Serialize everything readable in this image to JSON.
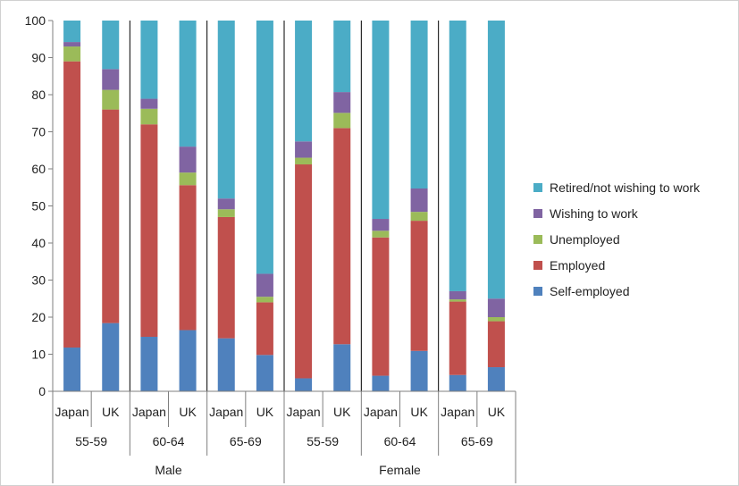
{
  "chart_data": {
    "type": "bar",
    "stacked": true,
    "ylim": [
      0,
      100
    ],
    "yticks": [
      0,
      10,
      20,
      30,
      40,
      50,
      60,
      70,
      80,
      90,
      100
    ],
    "grid": false,
    "legend_position": "right",
    "gender_groups": [
      "Male",
      "Female"
    ],
    "age_groups": [
      "55-59",
      "60-64",
      "65-69"
    ],
    "countries": [
      "Japan",
      "UK"
    ],
    "categories": [
      "Japan 55-59 Male",
      "UK 55-59 Male",
      "Japan 60-64 Male",
      "UK 60-64 Male",
      "Japan 65-69 Male",
      "UK 65-69 Male",
      "Japan 55-59 Female",
      "UK 55-59 Female",
      "Japan 60-64 Female",
      "UK 60-64 Female",
      "Japan 65-69 Female",
      "UK 65-69 Female"
    ],
    "series": [
      {
        "name": "Self-employed",
        "color": "#4f81bd",
        "values": [
          11.8,
          18.4,
          14.7,
          16.5,
          14.3,
          9.8,
          3.5,
          12.7,
          4.2,
          10.9,
          4.4,
          6.5
        ]
      },
      {
        "name": "Employed",
        "color": "#c0504d",
        "values": [
          77.2,
          57.6,
          57.3,
          39.1,
          32.7,
          14.2,
          57.7,
          58.3,
          37.3,
          35.1,
          19.8,
          12.4
        ]
      },
      {
        "name": "Unemployed",
        "color": "#9bbb59",
        "values": [
          4.0,
          5.3,
          4.2,
          3.4,
          2.1,
          1.5,
          1.8,
          4.1,
          1.8,
          2.4,
          0.6,
          1.1
        ]
      },
      {
        "name": "Wishing to work",
        "color": "#8064a2",
        "values": [
          1.2,
          5.6,
          2.7,
          7.0,
          2.9,
          6.2,
          4.4,
          5.6,
          3.2,
          6.3,
          2.2,
          5.0
        ]
      },
      {
        "name": "Retired/not wishing to work",
        "color": "#4bacc6",
        "values": [
          5.8,
          13.1,
          21.1,
          34.0,
          48.0,
          68.3,
          32.6,
          19.3,
          53.5,
          45.3,
          73.0,
          75.0
        ]
      }
    ]
  }
}
